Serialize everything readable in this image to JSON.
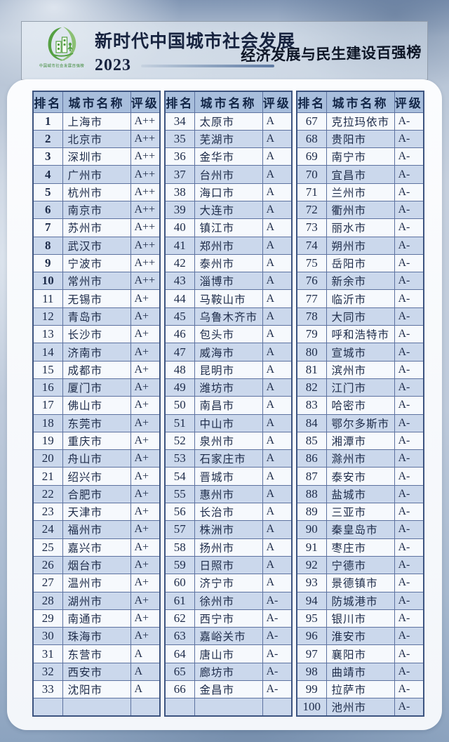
{
  "page": {
    "title_left": "新时代中国城市社会发展",
    "year": "2023",
    "title_right": "经济发展与民生建设百强榜",
    "logo_caption": "中国城市社会发展百强榜",
    "logo_icon": "green-leaf-city-emblem"
  },
  "colors": {
    "table_header_bg": "#a8bedc",
    "row_alt_bg": "#cbd8ec",
    "row_bg": "#f6f9fd",
    "table_border": "#3d5480",
    "logo_green": "#55a043",
    "background_blue": "#a7b9cf"
  },
  "table": {
    "column_headers": [
      "排名",
      "城市名称",
      "评级"
    ],
    "groups": [
      {
        "rows": [
          [
            1,
            "上海市",
            "A++"
          ],
          [
            2,
            "北京市",
            "A++"
          ],
          [
            3,
            "深圳市",
            "A++"
          ],
          [
            4,
            "广州市",
            "A++"
          ],
          [
            5,
            "杭州市",
            "A++"
          ],
          [
            6,
            "南京市",
            "A++"
          ],
          [
            7,
            "苏州市",
            "A++"
          ],
          [
            8,
            "武汉市",
            "A++"
          ],
          [
            9,
            "宁波市",
            "A++"
          ],
          [
            10,
            "常州市",
            "A++"
          ],
          [
            11,
            "无锡市",
            "A+"
          ],
          [
            12,
            "青岛市",
            "A+"
          ],
          [
            13,
            "长沙市",
            "A+"
          ],
          [
            14,
            "济南市",
            "A+"
          ],
          [
            15,
            "成都市",
            "A+"
          ],
          [
            16,
            "厦门市",
            "A+"
          ],
          [
            17,
            "佛山市",
            "A+"
          ],
          [
            18,
            "东莞市",
            "A+"
          ],
          [
            19,
            "重庆市",
            "A+"
          ],
          [
            20,
            "舟山市",
            "A+"
          ],
          [
            21,
            "绍兴市",
            "A+"
          ],
          [
            22,
            "合肥市",
            "A+"
          ],
          [
            23,
            "天津市",
            "A+"
          ],
          [
            24,
            "福州市",
            "A+"
          ],
          [
            25,
            "嘉兴市",
            "A+"
          ],
          [
            26,
            "烟台市",
            "A+"
          ],
          [
            27,
            "温州市",
            "A+"
          ],
          [
            28,
            "湖州市",
            "A+"
          ],
          [
            29,
            "南通市",
            "A+"
          ],
          [
            30,
            "珠海市",
            "A+"
          ],
          [
            31,
            "东营市",
            "A"
          ],
          [
            32,
            "西安市",
            "A"
          ],
          [
            33,
            "沈阳市",
            "A"
          ],
          [
            "",
            "",
            ""
          ]
        ]
      },
      {
        "rows": [
          [
            34,
            "太原市",
            "A"
          ],
          [
            35,
            "芜湖市",
            "A"
          ],
          [
            36,
            "金华市",
            "A"
          ],
          [
            37,
            "台州市",
            "A"
          ],
          [
            38,
            "海口市",
            "A"
          ],
          [
            39,
            "大连市",
            "A"
          ],
          [
            40,
            "镇江市",
            "A"
          ],
          [
            41,
            "郑州市",
            "A"
          ],
          [
            42,
            "泰州市",
            "A"
          ],
          [
            43,
            "淄博市",
            "A"
          ],
          [
            44,
            "马鞍山市",
            "A"
          ],
          [
            45,
            "乌鲁木齐市",
            "A"
          ],
          [
            46,
            "包头市",
            "A"
          ],
          [
            47,
            "威海市",
            "A"
          ],
          [
            48,
            "昆明市",
            "A"
          ],
          [
            49,
            "潍坊市",
            "A"
          ],
          [
            50,
            "南昌市",
            "A"
          ],
          [
            51,
            "中山市",
            "A"
          ],
          [
            52,
            "泉州市",
            "A"
          ],
          [
            53,
            "石家庄市",
            "A"
          ],
          [
            54,
            "晋城市",
            "A"
          ],
          [
            55,
            "惠州市",
            "A"
          ],
          [
            56,
            "长治市",
            "A"
          ],
          [
            57,
            "株洲市",
            "A"
          ],
          [
            58,
            "扬州市",
            "A"
          ],
          [
            59,
            "日照市",
            "A"
          ],
          [
            60,
            "济宁市",
            "A"
          ],
          [
            61,
            "徐州市",
            "A-"
          ],
          [
            62,
            "西宁市",
            "A-"
          ],
          [
            63,
            "嘉峪关市",
            "A-"
          ],
          [
            64,
            "唐山市",
            "A-"
          ],
          [
            65,
            "廊坊市",
            "A-"
          ],
          [
            66,
            "金昌市",
            "A-"
          ],
          [
            "",
            "",
            ""
          ]
        ]
      },
      {
        "rows": [
          [
            67,
            "克拉玛依市",
            "A-"
          ],
          [
            68,
            "贵阳市",
            "A-"
          ],
          [
            69,
            "南宁市",
            "A-"
          ],
          [
            70,
            "宜昌市",
            "A-"
          ],
          [
            71,
            "兰州市",
            "A-"
          ],
          [
            72,
            "衢州市",
            "A-"
          ],
          [
            73,
            "丽水市",
            "A-"
          ],
          [
            74,
            "朔州市",
            "A-"
          ],
          [
            75,
            "岳阳市",
            "A-"
          ],
          [
            76,
            "新余市",
            "A-"
          ],
          [
            77,
            "临沂市",
            "A-"
          ],
          [
            78,
            "大同市",
            "A-"
          ],
          [
            79,
            "呼和浩特市",
            "A-"
          ],
          [
            80,
            "宣城市",
            "A-"
          ],
          [
            81,
            "滨州市",
            "A-"
          ],
          [
            82,
            "江门市",
            "A-"
          ],
          [
            83,
            "哈密市",
            "A-"
          ],
          [
            84,
            "鄂尔多斯市",
            "A-"
          ],
          [
            85,
            "湘潭市",
            "A-"
          ],
          [
            86,
            "滁州市",
            "A-"
          ],
          [
            87,
            "泰安市",
            "A-"
          ],
          [
            88,
            "盐城市",
            "A-"
          ],
          [
            89,
            "三亚市",
            "A-"
          ],
          [
            90,
            "秦皇岛市",
            "A-"
          ],
          [
            91,
            "枣庄市",
            "A-"
          ],
          [
            92,
            "宁德市",
            "A-"
          ],
          [
            93,
            "景德镇市",
            "A-"
          ],
          [
            94,
            "防城港市",
            "A-"
          ],
          [
            95,
            "银川市",
            "A-"
          ],
          [
            96,
            "淮安市",
            "A-"
          ],
          [
            97,
            "襄阳市",
            "A-"
          ],
          [
            98,
            "曲靖市",
            "A-"
          ],
          [
            99,
            "拉萨市",
            "A-"
          ],
          [
            100,
            "池州市",
            "A-"
          ]
        ]
      }
    ]
  }
}
